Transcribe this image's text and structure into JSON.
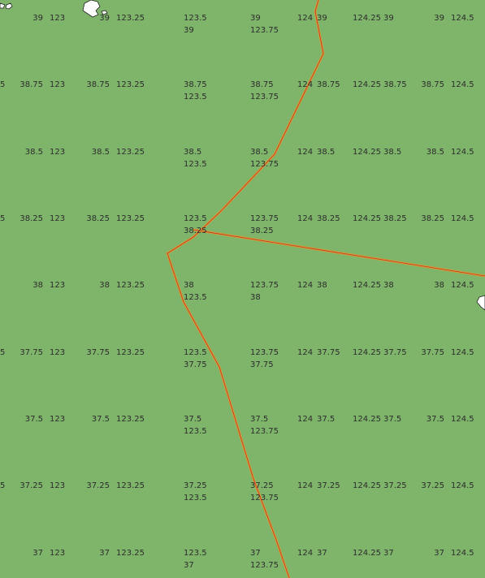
{
  "map": {
    "background": "#7fb56b",
    "boundary_colors": {
      "outer": "#d39a35",
      "inner": "#c0392b"
    },
    "island_color": "#ffffff",
    "rows": [
      {
        "lat": "39",
        "cells": [
          {
            "key": "c0",
            "lines": [
              "39"
            ]
          },
          {
            "key": "c1",
            "lines": [
              "123"
            ]
          },
          {
            "key": "c2",
            "lines": [
              "39"
            ]
          },
          {
            "key": "c3",
            "lines": [
              "123.25"
            ]
          },
          {
            "key": "c4",
            "lines": [
              "123.5",
              "39"
            ]
          },
          {
            "key": "c5",
            "lines": [
              "39",
              "123.75"
            ]
          },
          {
            "key": "c6",
            "lines": [
              "124"
            ]
          },
          {
            "key": "c7",
            "lines": [
              "39"
            ]
          },
          {
            "key": "c8",
            "lines": [
              "124.25"
            ]
          },
          {
            "key": "c9",
            "lines": [
              "39"
            ]
          },
          {
            "key": "c10",
            "lines": [
              "39"
            ]
          },
          {
            "key": "c11",
            "lines": [
              "124.5"
            ]
          }
        ]
      },
      {
        "lat": "38.75",
        "cells": [
          {
            "key": "c00",
            "lines": [
              "5"
            ]
          },
          {
            "key": "c0",
            "lines": [
              "38.75"
            ]
          },
          {
            "key": "c1",
            "lines": [
              "123"
            ]
          },
          {
            "key": "c2",
            "lines": [
              "38.75"
            ]
          },
          {
            "key": "c3",
            "lines": [
              "123.25"
            ]
          },
          {
            "key": "c4",
            "lines": [
              "38.75",
              "123.5"
            ]
          },
          {
            "key": "c5",
            "lines": [
              "38.75",
              "123.75"
            ]
          },
          {
            "key": "c6",
            "lines": [
              "124"
            ]
          },
          {
            "key": "c7",
            "lines": [
              "38.75"
            ]
          },
          {
            "key": "c8",
            "lines": [
              "124.25"
            ]
          },
          {
            "key": "c9",
            "lines": [
              "38.75"
            ]
          },
          {
            "key": "c10",
            "lines": [
              "38.75"
            ]
          },
          {
            "key": "c11",
            "lines": [
              "124.5"
            ]
          }
        ]
      },
      {
        "lat": "38.5",
        "cells": [
          {
            "key": "c0",
            "lines": [
              "38.5"
            ]
          },
          {
            "key": "c1",
            "lines": [
              "123"
            ]
          },
          {
            "key": "c2",
            "lines": [
              "38.5"
            ]
          },
          {
            "key": "c3",
            "lines": [
              "123.25"
            ]
          },
          {
            "key": "c4",
            "lines": [
              "38.5",
              "123.5"
            ]
          },
          {
            "key": "c5",
            "lines": [
              "38.5",
              "123.75"
            ]
          },
          {
            "key": "c6",
            "lines": [
              "124"
            ]
          },
          {
            "key": "c7",
            "lines": [
              "38.5"
            ]
          },
          {
            "key": "c8",
            "lines": [
              "124.25"
            ]
          },
          {
            "key": "c9",
            "lines": [
              "38.5"
            ]
          },
          {
            "key": "c10",
            "lines": [
              "38.5"
            ]
          },
          {
            "key": "c11",
            "lines": [
              "124.5"
            ]
          }
        ]
      },
      {
        "lat": "38.25",
        "cells": [
          {
            "key": "c00",
            "lines": [
              "5"
            ]
          },
          {
            "key": "c0",
            "lines": [
              "38.25"
            ]
          },
          {
            "key": "c1",
            "lines": [
              "123"
            ]
          },
          {
            "key": "c2",
            "lines": [
              "38.25"
            ]
          },
          {
            "key": "c3",
            "lines": [
              "123.25"
            ]
          },
          {
            "key": "c4",
            "lines": [
              "123.5",
              "38.25"
            ]
          },
          {
            "key": "c5",
            "lines": [
              "123.75",
              "38.25"
            ]
          },
          {
            "key": "c6",
            "lines": [
              "124"
            ]
          },
          {
            "key": "c7",
            "lines": [
              "38.25"
            ]
          },
          {
            "key": "c8",
            "lines": [
              "124.25"
            ]
          },
          {
            "key": "c9",
            "lines": [
              "38.25"
            ]
          },
          {
            "key": "c10",
            "lines": [
              "38.25"
            ]
          },
          {
            "key": "c11",
            "lines": [
              "124.5"
            ]
          }
        ]
      },
      {
        "lat": "38",
        "cells": [
          {
            "key": "c0",
            "lines": [
              "38"
            ]
          },
          {
            "key": "c1",
            "lines": [
              "123"
            ]
          },
          {
            "key": "c2",
            "lines": [
              "38"
            ]
          },
          {
            "key": "c3",
            "lines": [
              "123.25"
            ]
          },
          {
            "key": "c4",
            "lines": [
              "38",
              "123.5"
            ]
          },
          {
            "key": "c5",
            "lines": [
              "123.75",
              "38"
            ]
          },
          {
            "key": "c6",
            "lines": [
              "124"
            ]
          },
          {
            "key": "c7",
            "lines": [
              "38"
            ]
          },
          {
            "key": "c8",
            "lines": [
              "124.25"
            ]
          },
          {
            "key": "c9",
            "lines": [
              "38"
            ]
          },
          {
            "key": "c10",
            "lines": [
              "38"
            ]
          },
          {
            "key": "c11",
            "lines": [
              "124.5"
            ]
          }
        ]
      },
      {
        "lat": "37.75",
        "cells": [
          {
            "key": "c00",
            "lines": [
              "5"
            ]
          },
          {
            "key": "c0",
            "lines": [
              "37.75"
            ]
          },
          {
            "key": "c1",
            "lines": [
              "123"
            ]
          },
          {
            "key": "c2",
            "lines": [
              "37.75"
            ]
          },
          {
            "key": "c3",
            "lines": [
              "123.25"
            ]
          },
          {
            "key": "c4",
            "lines": [
              "123.5",
              "37.75"
            ]
          },
          {
            "key": "c5",
            "lines": [
              "123.75",
              "37.75"
            ]
          },
          {
            "key": "c6",
            "lines": [
              "124"
            ]
          },
          {
            "key": "c7",
            "lines": [
              "37.75"
            ]
          },
          {
            "key": "c8",
            "lines": [
              "124.25"
            ]
          },
          {
            "key": "c9",
            "lines": [
              "37.75"
            ]
          },
          {
            "key": "c10",
            "lines": [
              "37.75"
            ]
          },
          {
            "key": "c11",
            "lines": [
              "124.5"
            ]
          }
        ]
      },
      {
        "lat": "37.5",
        "cells": [
          {
            "key": "c0",
            "lines": [
              "37.5"
            ]
          },
          {
            "key": "c1",
            "lines": [
              "123"
            ]
          },
          {
            "key": "c2",
            "lines": [
              "37.5"
            ]
          },
          {
            "key": "c3",
            "lines": [
              "123.25"
            ]
          },
          {
            "key": "c4",
            "lines": [
              "37.5",
              "123.5"
            ]
          },
          {
            "key": "c5",
            "lines": [
              "37.5",
              "123.75"
            ]
          },
          {
            "key": "c6",
            "lines": [
              "124"
            ]
          },
          {
            "key": "c7",
            "lines": [
              "37.5"
            ]
          },
          {
            "key": "c8",
            "lines": [
              "124.25"
            ]
          },
          {
            "key": "c9",
            "lines": [
              "37.5"
            ]
          },
          {
            "key": "c10",
            "lines": [
              "37.5"
            ]
          },
          {
            "key": "c11",
            "lines": [
              "124.5"
            ]
          }
        ]
      },
      {
        "lat": "37.25",
        "cells": [
          {
            "key": "c00",
            "lines": [
              "5"
            ]
          },
          {
            "key": "c0",
            "lines": [
              "37.25"
            ]
          },
          {
            "key": "c1",
            "lines": [
              "123"
            ]
          },
          {
            "key": "c2",
            "lines": [
              "37.25"
            ]
          },
          {
            "key": "c3",
            "lines": [
              "123.25"
            ]
          },
          {
            "key": "c4",
            "lines": [
              "37.25",
              "123.5"
            ]
          },
          {
            "key": "c5",
            "lines": [
              "37.25",
              "123.75"
            ]
          },
          {
            "key": "c6",
            "lines": [
              "124"
            ]
          },
          {
            "key": "c7",
            "lines": [
              "37.25"
            ]
          },
          {
            "key": "c8",
            "lines": [
              "124.25"
            ]
          },
          {
            "key": "c9",
            "lines": [
              "37.25"
            ]
          },
          {
            "key": "c10",
            "lines": [
              "37.25"
            ]
          },
          {
            "key": "c11",
            "lines": [
              "124.5"
            ]
          }
        ]
      },
      {
        "lat": "37",
        "cells": [
          {
            "key": "c0",
            "lines": [
              "37"
            ]
          },
          {
            "key": "c1",
            "lines": [
              "123"
            ]
          },
          {
            "key": "c2",
            "lines": [
              "37"
            ]
          },
          {
            "key": "c3",
            "lines": [
              "123.25"
            ]
          },
          {
            "key": "c4",
            "lines": [
              "123.5",
              "37"
            ]
          },
          {
            "key": "c5",
            "lines": [
              "37",
              "123.75"
            ]
          },
          {
            "key": "c6",
            "lines": [
              "124"
            ]
          },
          {
            "key": "c7",
            "lines": [
              "37"
            ]
          },
          {
            "key": "c8",
            "lines": [
              "124.25"
            ]
          },
          {
            "key": "c9",
            "lines": [
              "37"
            ]
          },
          {
            "key": "c10",
            "lines": [
              "37"
            ]
          },
          {
            "key": "c11",
            "lines": [
              "124.5"
            ]
          }
        ]
      }
    ]
  }
}
